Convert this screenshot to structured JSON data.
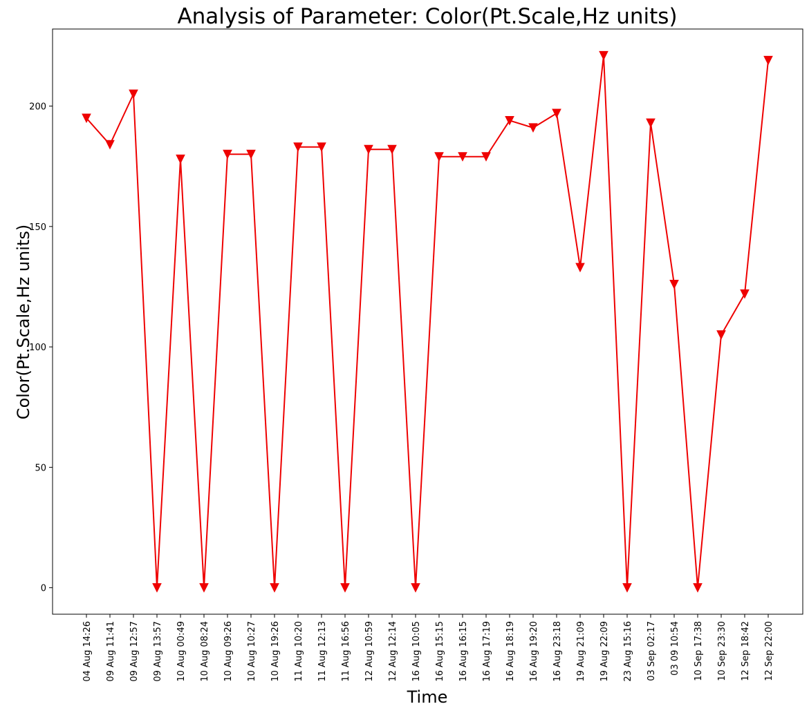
{
  "chart_data": {
    "type": "line",
    "title": "Analysis of Parameter: Color(Pt.Scale,Hz units)",
    "xlabel": "Time",
    "ylabel": "Color(Pt.Scale,Hz units)",
    "ylim": [
      -11,
      232
    ],
    "yticks": [
      0,
      50,
      100,
      150,
      200
    ],
    "grid": false,
    "marker": "triangle-down",
    "color": "#ee0000",
    "categories": [
      "04 Aug 14:26",
      "09 Aug 11:41",
      "09 Aug 12:57",
      "09 Aug 13:57",
      "10 Aug 00:49",
      "10 Aug 08:24",
      "10 Aug 09:26",
      "10 Aug 10:27",
      "10 Aug 19:26",
      "11 Aug 10:20",
      "11 Aug 12:13",
      "11 Aug 16:56",
      "12 Aug 10:59",
      "12 Aug 12:14",
      "16 Aug 10:05",
      "16 Aug 15:15",
      "16 Aug 16:15",
      "16 Aug 17:19",
      "16 Aug 18:19",
      "16 Aug 19:20",
      "16 Aug 23:18",
      "19 Aug 21:09",
      "19 Aug 22:09",
      "23 Aug 15:16",
      "03 Sep 02:17",
      "03 09 10:54",
      "10 Sep 17:38",
      "10 Sep 23:30",
      "12 Sep 18:42",
      "12 Sep 22:00"
    ],
    "values": [
      195,
      184,
      205,
      0,
      178,
      0,
      180,
      180,
      0,
      183,
      183,
      0,
      182,
      182,
      0,
      179,
      179,
      179,
      194,
      191,
      197,
      133,
      221,
      0,
      193,
      126,
      0,
      105,
      122,
      219
    ]
  }
}
